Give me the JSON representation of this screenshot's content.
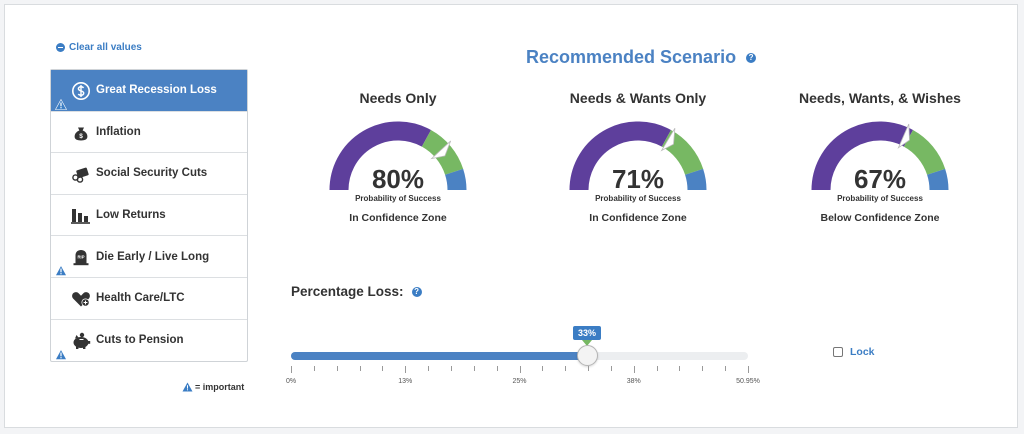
{
  "clear_all_label": "Clear all values",
  "scenarios": [
    {
      "label": "Great Recession Loss",
      "icon": "dollar-circle-icon",
      "important": true,
      "active": true
    },
    {
      "label": "Inflation",
      "icon": "money-bag-icon",
      "important": false
    },
    {
      "label": "Social Security Cuts",
      "icon": "scissors-card-icon",
      "important": false
    },
    {
      "label": "Low Returns",
      "icon": "bar-chart-icon",
      "important": false
    },
    {
      "label": "Die Early / Live Long",
      "icon": "tombstone-icon",
      "important": true,
      "tombstone_text": "RIP"
    },
    {
      "label": "Health Care/LTC",
      "icon": "heart-plus-icon",
      "important": false
    },
    {
      "label": "Cuts to Pension",
      "icon": "piggy-bank-icon",
      "important": true
    }
  ],
  "legend": {
    "icon": "warning-icon",
    "label": "= important"
  },
  "recommended_title": "Recommended Scenario",
  "gauges": [
    {
      "title": "Needs Only",
      "value": "80%",
      "probability_label": "Probability of Success",
      "zone": "In Confidence Zone",
      "level": 0.8
    },
    {
      "title": "Needs & Wants Only",
      "value": "71%",
      "probability_label": "Probability of Success",
      "zone": "In Confidence Zone",
      "level": 0.71
    },
    {
      "title": "Needs, Wants, & Wishes",
      "value": "67%",
      "probability_label": "Probability of Success",
      "zone": "Below Confidence Zone",
      "level": 0.67
    }
  ],
  "percentage_loss": {
    "label": "Percentage Loss:",
    "value_label": "33%",
    "value": 33,
    "min": 0,
    "max": 50.95,
    "tick_labels": [
      "0%",
      "13%",
      "25%",
      "38%",
      "50.95%"
    ]
  },
  "lock_label": "Lock",
  "colors": {
    "accent": "#4b82c3",
    "gauge_purple": "#5e3f9c",
    "gauge_green": "#77b863",
    "gauge_blue": "#4b82c3",
    "warning": "#3b7dc4"
  }
}
